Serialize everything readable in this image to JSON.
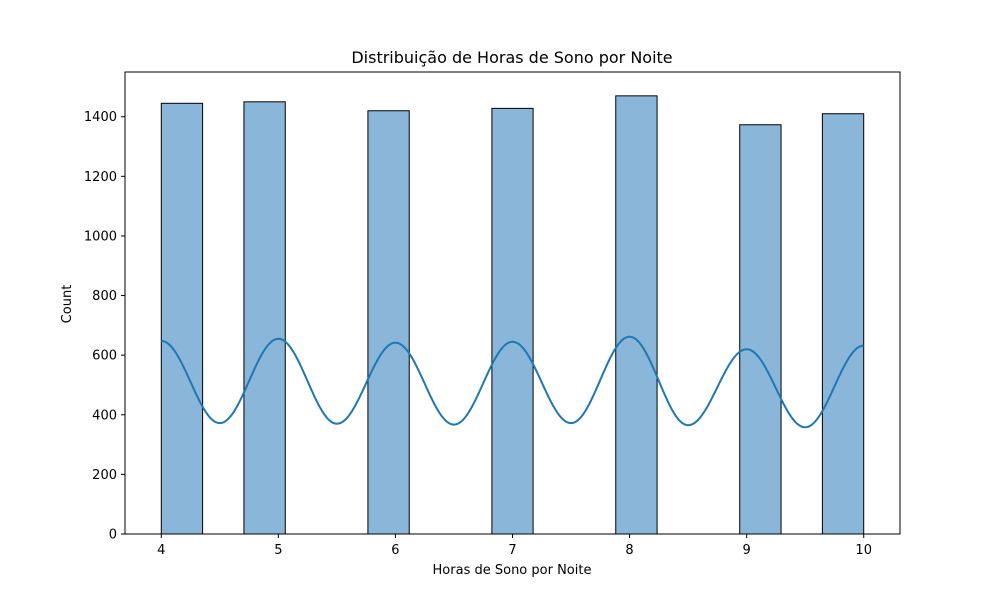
{
  "chart_data": {
    "type": "bar",
    "title": "Distribuição de Horas de Sono por Noite",
    "xlabel": "Horas de Sono por Noite",
    "ylabel": "Count",
    "xlim": [
      3.69,
      10.31
    ],
    "ylim": [
      0,
      1550
    ],
    "xticks": [
      4,
      5,
      6,
      7,
      8,
      9,
      10
    ],
    "yticks": [
      0,
      200,
      400,
      600,
      800,
      1000,
      1200,
      1400
    ],
    "grid": false,
    "legend": "none",
    "bar_color": "#8ab7d9",
    "bar_edge_color": "#000000",
    "kde_color": "#1f77b4",
    "series": [
      {
        "type": "histogram",
        "bin_width": 0.3529,
        "bars": [
          {
            "x_start": 4.0,
            "x_end": 4.353,
            "value": 1445
          },
          {
            "x_start": 4.706,
            "x_end": 5.059,
            "value": 1450
          },
          {
            "x_start": 5.765,
            "x_end": 6.118,
            "value": 1420
          },
          {
            "x_start": 6.824,
            "x_end": 7.176,
            "value": 1428
          },
          {
            "x_start": 7.882,
            "x_end": 8.235,
            "value": 1470
          },
          {
            "x_start": 8.941,
            "x_end": 9.294,
            "value": 1373
          },
          {
            "x_start": 9.647,
            "x_end": 10.0,
            "value": 1410
          }
        ]
      },
      {
        "type": "kde-line",
        "peaks": [
          {
            "x": 4.0,
            "y": 648
          },
          {
            "x": 5.0,
            "y": 655
          },
          {
            "x": 6.0,
            "y": 642
          },
          {
            "x": 7.0,
            "y": 645
          },
          {
            "x": 8.0,
            "y": 662
          },
          {
            "x": 9.0,
            "y": 620
          },
          {
            "x": 10.0,
            "y": 632
          }
        ],
        "troughs": [
          {
            "x": 4.5,
            "y": 372
          },
          {
            "x": 5.5,
            "y": 370
          },
          {
            "x": 6.5,
            "y": 367
          },
          {
            "x": 7.5,
            "y": 372
          },
          {
            "x": 8.5,
            "y": 365
          },
          {
            "x": 9.5,
            "y": 358
          }
        ]
      }
    ]
  }
}
